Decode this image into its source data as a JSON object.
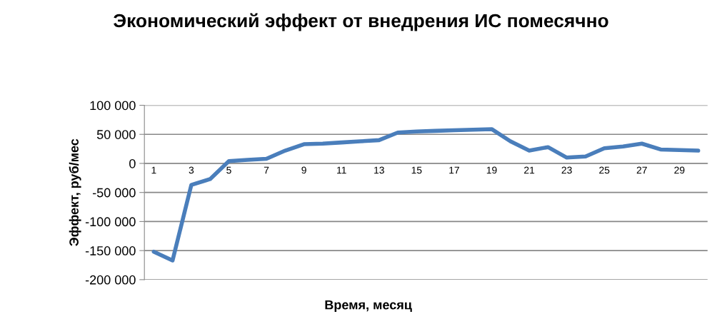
{
  "chart_data": {
    "type": "line",
    "title": "Экономический эффект от внедрения ИС помесячно",
    "xlabel": "Время, месяц",
    "ylabel": "Эффект, руб/мес",
    "categories": [
      "1",
      null,
      "3",
      null,
      "5",
      null,
      "7",
      null,
      "9",
      null,
      "11",
      null,
      "13",
      null,
      "15",
      null,
      "17",
      null,
      "19",
      null,
      "21",
      null,
      "23",
      null,
      "25",
      null,
      "27",
      null,
      "29",
      null
    ],
    "series": [
      {
        "color": "#4a7ebb",
        "values": [
          -152000,
          -167000,
          -37000,
          -27000,
          4000,
          6000,
          8000,
          22000,
          33000,
          34000,
          36000,
          38000,
          40000,
          53000,
          55000,
          56000,
          57000,
          58000,
          59000,
          38000,
          22000,
          28000,
          10000,
          12000,
          26000,
          29000,
          34000,
          24000,
          23000,
          22000
        ]
      }
    ],
    "ylim": [
      -200000,
      100000
    ],
    "yticks": [
      {
        "value": -200000,
        "label": "-200 000"
      },
      {
        "value": -150000,
        "label": "-150 000"
      },
      {
        "value": -100000,
        "label": "-100 000"
      },
      {
        "value": -50000,
        "label": "-50 000"
      },
      0,
      {
        "value": 50000,
        "label": "50 000"
      },
      {
        "value": 100000,
        "label": "100 000"
      }
    ],
    "grid": "y",
    "legend": false,
    "marker": "none",
    "line_style": "solid"
  }
}
